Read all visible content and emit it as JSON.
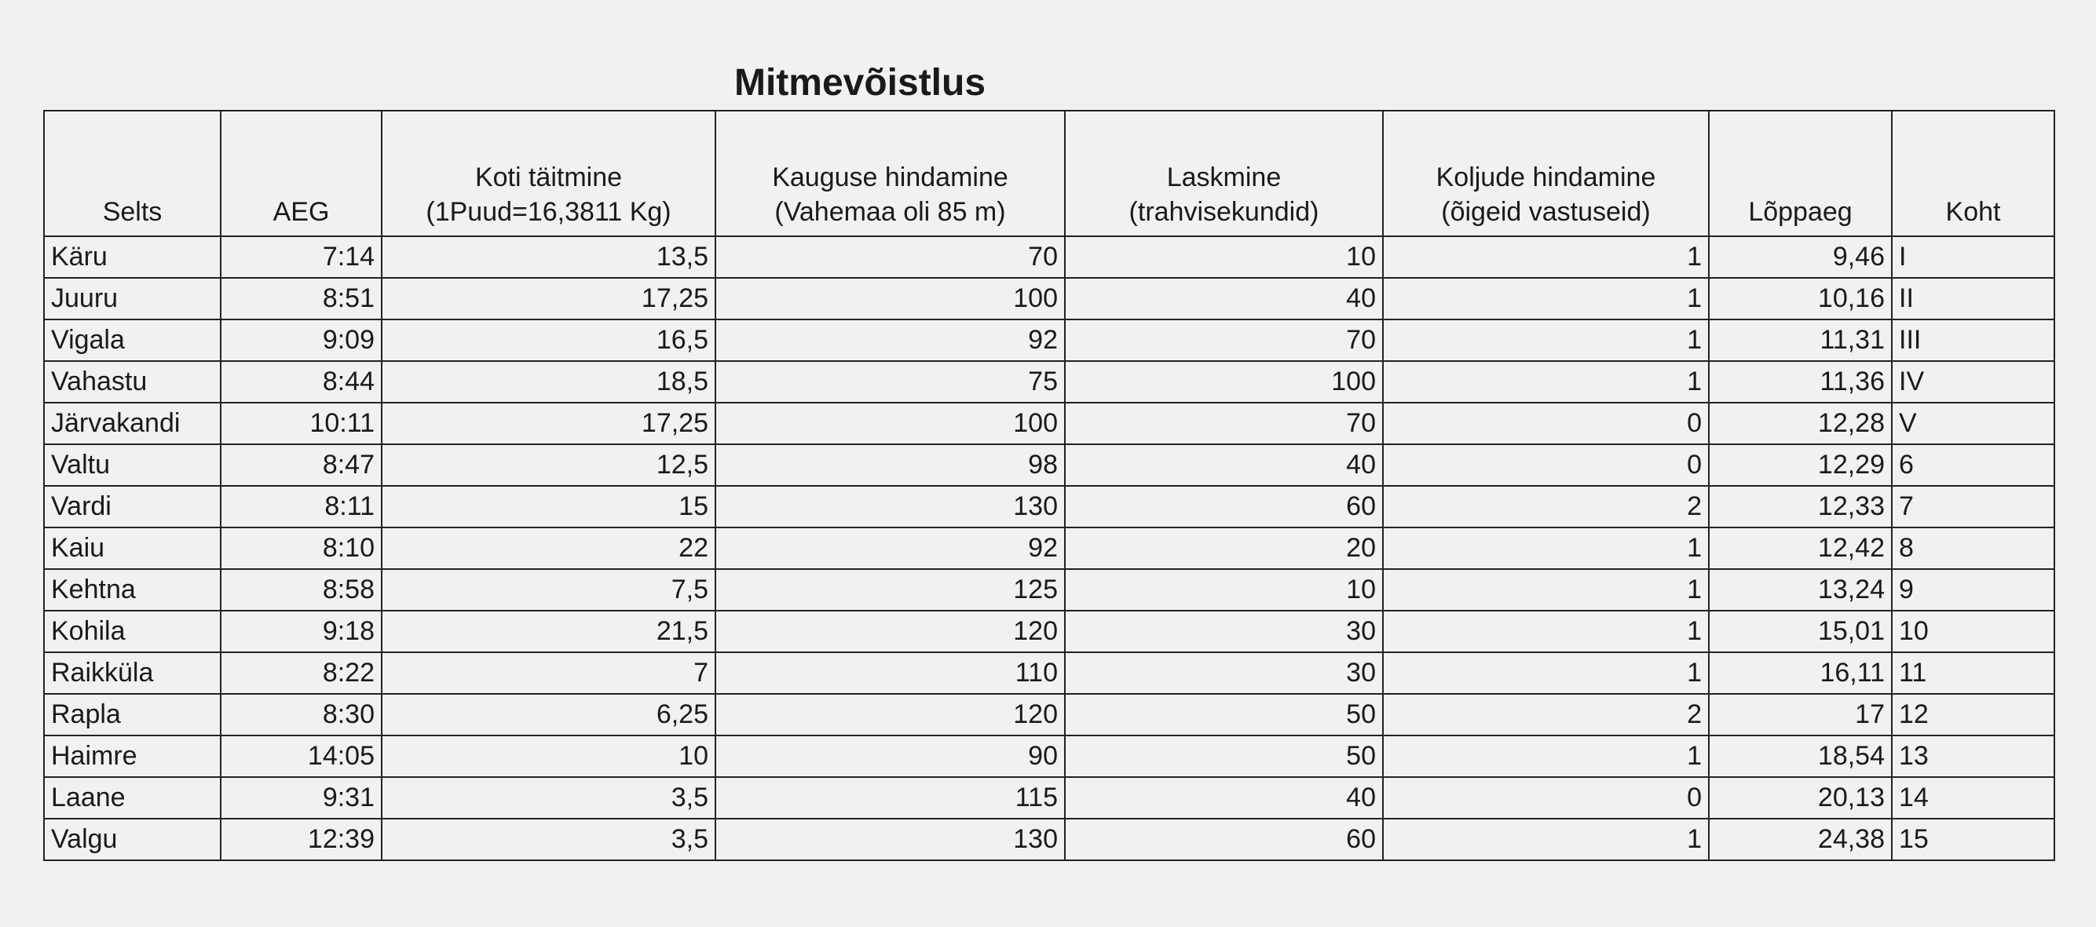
{
  "title": "Mitmevõistlus",
  "table": {
    "headers": [
      [
        "Selts"
      ],
      [
        "AEG"
      ],
      [
        "Koti täitmine",
        "(1Puud=16,3811 Kg)"
      ],
      [
        "Kauguse hindamine",
        "(Vahemaa oli 85 m)"
      ],
      [
        "Laskmine",
        "(trahvisekundid)"
      ],
      [
        "Koljude hindamine",
        "(õigeid vastuseid)"
      ],
      [
        "Lõppaeg"
      ],
      [
        "Koht"
      ]
    ],
    "rows": [
      [
        "Käru",
        "7:14",
        "13,5",
        "70",
        "10",
        "1",
        "9,46",
        "I"
      ],
      [
        "Juuru",
        "8:51",
        "17,25",
        "100",
        "40",
        "1",
        "10,16",
        "II"
      ],
      [
        "Vigala",
        "9:09",
        "16,5",
        "92",
        "70",
        "1",
        "11,31",
        "III"
      ],
      [
        "Vahastu",
        "8:44",
        "18,5",
        "75",
        "100",
        "1",
        "11,36",
        "IV"
      ],
      [
        "Järvakandi",
        "10:11",
        "17,25",
        "100",
        "70",
        "0",
        "12,28",
        "V"
      ],
      [
        "Valtu",
        "8:47",
        "12,5",
        "98",
        "40",
        "0",
        "12,29",
        "6"
      ],
      [
        "Vardi",
        "8:11",
        "15",
        "130",
        "60",
        "2",
        "12,33",
        "7"
      ],
      [
        "Kaiu",
        "8:10",
        "22",
        "92",
        "20",
        "1",
        "12,42",
        "8"
      ],
      [
        "Kehtna",
        "8:58",
        "7,5",
        "125",
        "10",
        "1",
        "13,24",
        "9"
      ],
      [
        "Kohila",
        "9:18",
        "21,5",
        "120",
        "30",
        "1",
        "15,01",
        "10"
      ],
      [
        "Raikküla",
        "8:22",
        "7",
        "110",
        "30",
        "1",
        "16,11",
        "11"
      ],
      [
        "Rapla",
        "8:30",
        "6,25",
        "120",
        "50",
        "2",
        "17",
        "12"
      ],
      [
        "Haimre",
        "14:05",
        "10",
        "90",
        "50",
        "1",
        "18,54",
        "13"
      ],
      [
        "Laane",
        "9:31",
        "3,5",
        "115",
        "40",
        "0",
        "20,13",
        "14"
      ],
      [
        "Valgu",
        "12:39",
        "3,5",
        "130",
        "60",
        "1",
        "24,38",
        "15"
      ]
    ]
  }
}
